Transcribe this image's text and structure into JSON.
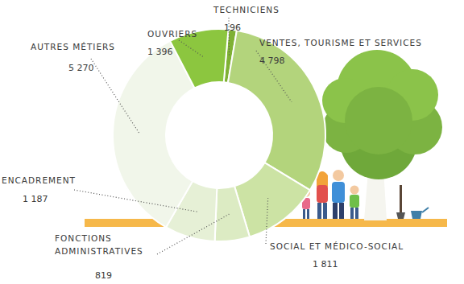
{
  "chart_data": {
    "type": "pie",
    "categories": [
      "TECHNICIENS",
      "VENTES, TOURISME ET SERVICES",
      "SOCIAL ET MÉDICO-SOCIAL",
      "FONCTIONS ADMINISTRATIVES",
      "ENCADREMENT",
      "AUTRES MÉTIERS",
      "OUVRIERS"
    ],
    "values": [
      196,
      4798,
      1811,
      819,
      1187,
      5270,
      1396
    ],
    "value_labels": [
      "196",
      "4 798",
      "1 811",
      "819",
      "1 187",
      "5 270",
      "1 396"
    ],
    "colors": [
      "#7fb135",
      "#b3d47c",
      "#cce3a4",
      "#dcebc3",
      "#e6f0d6",
      "#f1f6ea",
      "#8cc63f"
    ],
    "data_labels": true
  }
}
